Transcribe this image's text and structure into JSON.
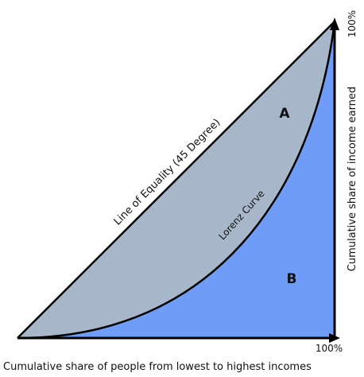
{
  "diagram": {
    "labels": {
      "line_of_equality": "Line of Equality (45 Degree)",
      "lorenz_curve": "Lorenz Curve",
      "region_a": "A",
      "region_b": "B",
      "y_axis": "Cumulative share of income earned",
      "y_max": "100%",
      "x_max": "100%",
      "x_axis": "Cumulative share of people from lowest to highest incomes"
    },
    "colors": {
      "region_a_fill": "#a7b6c8",
      "region_b_fill": "#6f9cf7",
      "lines": "#000000"
    }
  }
}
